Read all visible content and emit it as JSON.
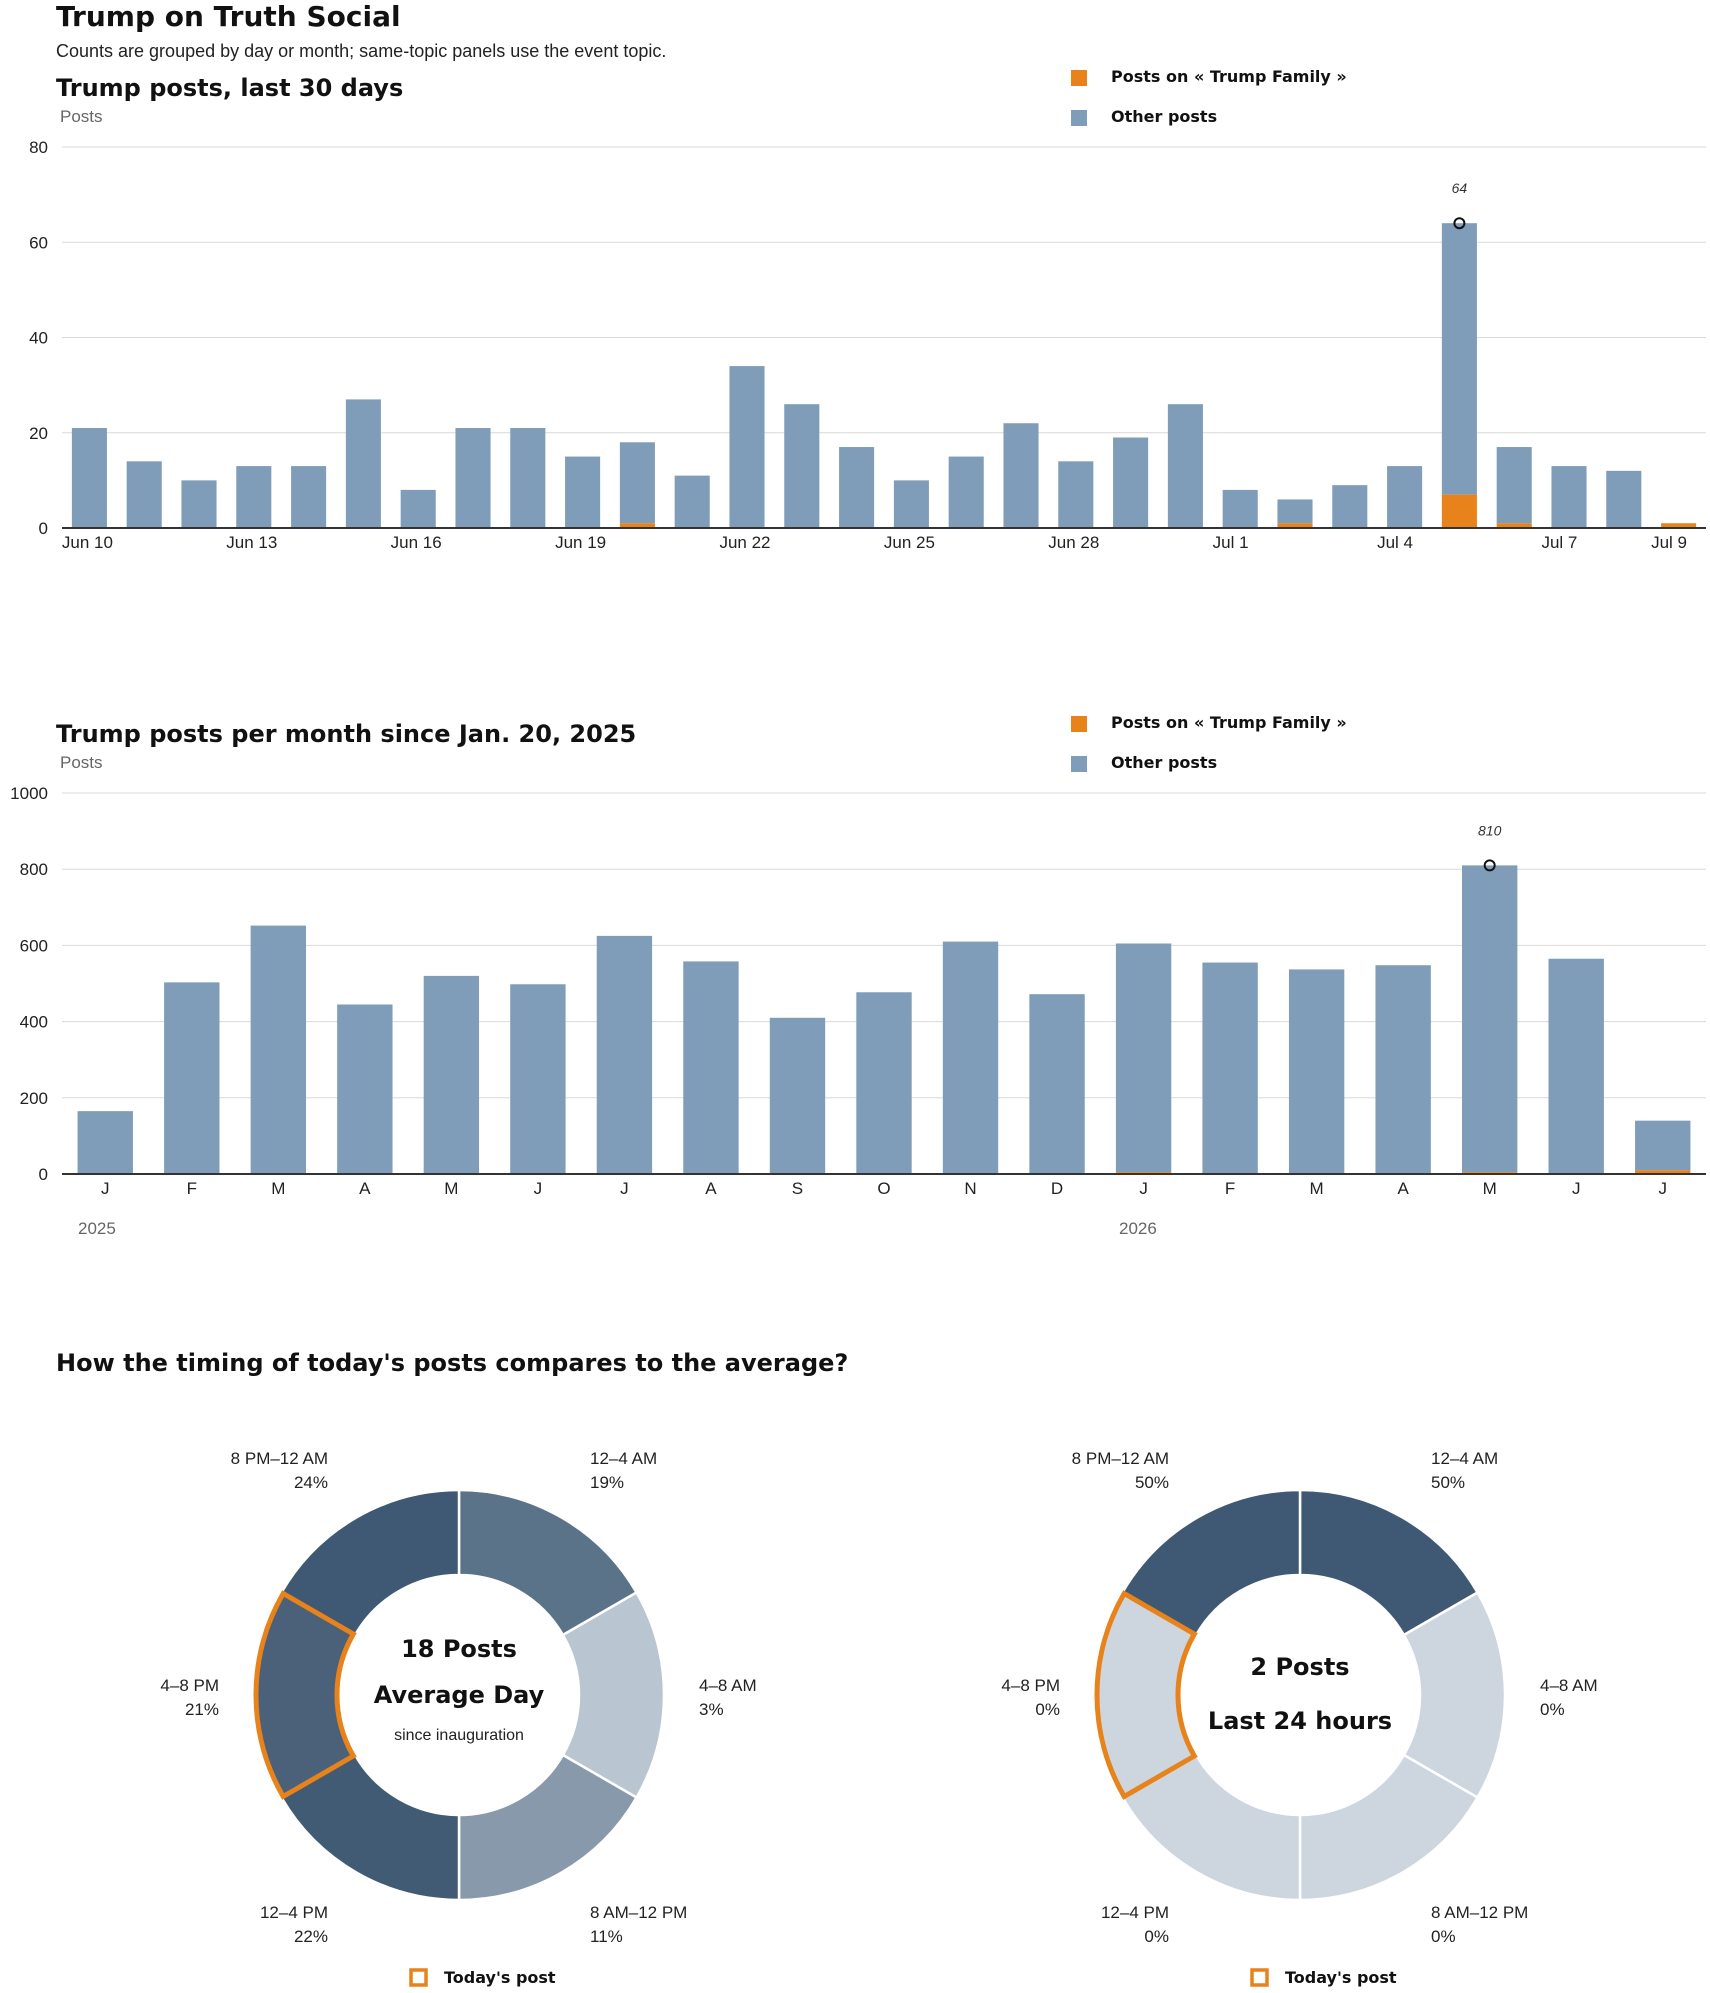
{
  "page": {
    "title": "Trump on Truth Social",
    "subtitle": "Counts are grouped by day or month; same-topic panels use the event topic."
  },
  "colors": {
    "topic": "#e8821a",
    "other": "#7f9db9",
    "axis": "#333333",
    "grid": "#d9d9d9"
  },
  "legend": {
    "topic_label": "Posts on « Trump Family »",
    "other_label": "Other posts"
  },
  "daily_chart": {
    "title": "Trump posts, last 30 days",
    "ylabel": "Posts",
    "peak_label": "64",
    "chart_data": {
      "type": "bar",
      "stacked": true,
      "ylim": [
        0,
        80
      ],
      "yticks": [
        0,
        20,
        40,
        60,
        80
      ],
      "categories": [
        "Jun 10",
        "Jun 11",
        "Jun 12",
        "Jun 13",
        "Jun 14",
        "Jun 15",
        "Jun 16",
        "Jun 17",
        "Jun 18",
        "Jun 19",
        "Jun 20",
        "Jun 21",
        "Jun 22",
        "Jun 23",
        "Jun 24",
        "Jun 25",
        "Jun 26",
        "Jun 27",
        "Jun 28",
        "Jun 29",
        "Jun 30",
        "Jul 1",
        "Jul 2",
        "Jul 3",
        "Jul 4",
        "Jul 5",
        "Jul 6",
        "Jul 7",
        "Jul 8",
        "Jul 9"
      ],
      "tick_labels": [
        "Jun 10",
        "",
        "",
        "Jun 13",
        "",
        "",
        "Jun 16",
        "",
        "",
        "Jun 19",
        "",
        "",
        "Jun 22",
        "",
        "",
        "Jun 25",
        "",
        "",
        "Jun 28",
        "",
        "",
        "Jul 1",
        "",
        "",
        "Jul 4",
        "",
        "",
        "Jul 7",
        "",
        "Jul 9"
      ],
      "series": [
        {
          "name": "Posts on « Trump Family »",
          "values": [
            0,
            0,
            0,
            0,
            0,
            0,
            0,
            0,
            0,
            0,
            1,
            0,
            0,
            0,
            0,
            0,
            0,
            0,
            0,
            0,
            0,
            0,
            1,
            0,
            0,
            7,
            1,
            0,
            0,
            1
          ]
        },
        {
          "name": "Other posts",
          "values": [
            21,
            14,
            10,
            13,
            13,
            27,
            8,
            21,
            21,
            15,
            17,
            11,
            34,
            26,
            17,
            10,
            15,
            22,
            14,
            19,
            26,
            8,
            5,
            9,
            13,
            57,
            16,
            13,
            12,
            0
          ]
        }
      ],
      "peak_index": 25,
      "grid": true
    }
  },
  "monthly_chart": {
    "title": "Trump posts per month since Jan. 20, 2025",
    "ylabel": "Posts",
    "peak_label": "810",
    "year_labels": [
      "2025",
      "2026"
    ],
    "chart_data": {
      "type": "bar",
      "stacked": true,
      "ylim": [
        0,
        1000
      ],
      "yticks": [
        0,
        200,
        400,
        600,
        800,
        1000
      ],
      "categories": [
        "J",
        "F",
        "M",
        "A",
        "M",
        "J",
        "J",
        "A",
        "S",
        "O",
        "N",
        "D",
        "J",
        "F",
        "M",
        "A",
        "M",
        "J",
        "J"
      ],
      "series": [
        {
          "name": "Posts on « Trump Family »",
          "values": [
            0,
            0,
            0,
            0,
            0,
            0,
            0,
            0,
            0,
            0,
            0,
            0,
            5,
            0,
            0,
            0,
            5,
            0,
            10
          ]
        },
        {
          "name": "Other posts",
          "values": [
            165,
            503,
            652,
            445,
            520,
            498,
            625,
            558,
            410,
            477,
            610,
            472,
            600,
            555,
            537,
            548,
            805,
            565,
            130
          ]
        }
      ],
      "peak_index": 16,
      "grid": true
    }
  },
  "timing": {
    "title": "How the timing of today's posts compares to the average?",
    "legend_label": "Today's post",
    "chart_data": [
      {
        "type": "pie",
        "center_line1": "18 Posts",
        "center_line2": "Average Day",
        "center_line3": "since inauguration",
        "highlight_index": 4,
        "slices": [
          {
            "label": "12–4 AM",
            "value": "19%",
            "fraction": 0.19,
            "color": "#5b7389"
          },
          {
            "label": "4–8 AM",
            "value": "3%",
            "fraction": 0.03,
            "color": "#b9c5d1"
          },
          {
            "label": "8 AM–12 PM",
            "value": "11%",
            "fraction": 0.11,
            "color": "#8799ab"
          },
          {
            "label": "12–4 PM",
            "value": "22%",
            "fraction": 0.22,
            "color": "#415b75"
          },
          {
            "label": "4–8 PM",
            "value": "21%",
            "fraction": 0.21,
            "color": "#4b6179"
          },
          {
            "label": "8 PM–12 AM",
            "value": "24%",
            "fraction": 0.24,
            "color": "#3f5873"
          }
        ]
      },
      {
        "type": "pie",
        "center_line1": "2 Posts",
        "center_line2": "Last 24 hours",
        "center_line3": "",
        "highlight_index": 4,
        "slices": [
          {
            "label": "12–4 AM",
            "value": "50%",
            "fraction": 0.5,
            "color": "#3f5873"
          },
          {
            "label": "4–8 AM",
            "value": "0%",
            "fraction": 0.0,
            "color": "#cdd6df"
          },
          {
            "label": "8 AM–12 PM",
            "value": "0%",
            "fraction": 0.0,
            "color": "#cdd6df"
          },
          {
            "label": "12–4 PM",
            "value": "0%",
            "fraction": 0.0,
            "color": "#cdd6df"
          },
          {
            "label": "4–8 PM",
            "value": "0%",
            "fraction": 0.0,
            "color": "#cdd6df"
          },
          {
            "label": "8 PM–12 AM",
            "value": "50%",
            "fraction": 0.5,
            "color": "#3f5873"
          }
        ]
      }
    ]
  }
}
